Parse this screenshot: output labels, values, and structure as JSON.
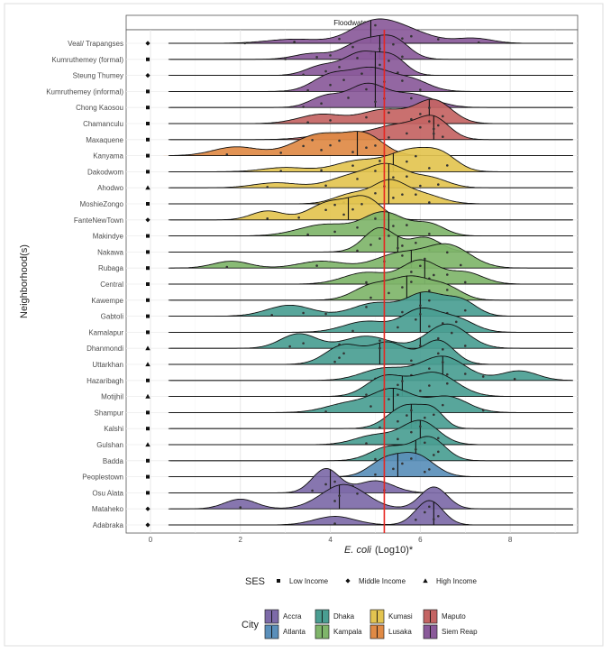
{
  "chart_data": {
    "type": "ridgeline",
    "panel_title": "Floodwater",
    "xlabel_italic": "E. coli",
    "xlabel_rest": "(Log10)*",
    "ylabel": "Neighborhood(s)",
    "xlim": [
      -0.3,
      9.5
    ],
    "xticks": [
      0,
      2,
      4,
      6,
      8
    ],
    "reference_line": 5.2,
    "reference_line_color": "#e8251f",
    "grid": true,
    "legend_position": "bottom",
    "ses_legend": {
      "title": "SES",
      "items": [
        {
          "label": "Low Income",
          "shape": "square"
        },
        {
          "label": "Middle Income",
          "shape": "diamond"
        },
        {
          "label": "High Income",
          "shape": "triangle"
        }
      ]
    },
    "city_legend": {
      "title": "City",
      "items": [
        {
          "label": "Accra",
          "color": "#7d6aa8"
        },
        {
          "label": "Atlanta",
          "color": "#5a8fba"
        },
        {
          "label": "Dhaka",
          "color": "#4a9e92"
        },
        {
          "label": "Kampala",
          "color": "#7fb56a"
        },
        {
          "label": "Kumasi",
          "color": "#e3c450"
        },
        {
          "label": "Lusaka",
          "color": "#e08a45"
        },
        {
          "label": "Maputo",
          "color": "#c46463"
        },
        {
          "label": "Siem Reap",
          "color": "#8a5a9a"
        }
      ]
    },
    "rows": [
      {
        "name": "Veal/ Trapangses",
        "city": "Siem Reap",
        "ses": "diamond",
        "median": 4.9,
        "components": [
          [
            3.2,
            0.6,
            0.25
          ],
          [
            4.9,
            0.5,
            1.0
          ],
          [
            5.6,
            0.6,
            0.8
          ],
          [
            7.2,
            0.4,
            0.3
          ]
        ],
        "points": [
          2.1,
          3.2,
          4.2,
          5.0,
          5.6,
          5.8,
          6.4,
          7.3
        ]
      },
      {
        "name": "Kumruthemey (formal)",
        "city": "Siem Reap",
        "ses": "square",
        "median": 5.1,
        "components": [
          [
            3.6,
            0.4,
            0.3
          ],
          [
            4.7,
            0.4,
            0.9
          ],
          [
            5.4,
            0.35,
            1.0
          ]
        ],
        "points": [
          3.0,
          3.7,
          4.0,
          4.5,
          4.9,
          5.1,
          5.4,
          5.6
        ]
      },
      {
        "name": "Steung Thumey",
        "city": "Siem Reap",
        "ses": "diamond",
        "median": 5.0,
        "components": [
          [
            3.8,
            0.35,
            0.4
          ],
          [
            4.7,
            0.4,
            1.0
          ],
          [
            5.4,
            0.3,
            0.7
          ]
        ],
        "points": [
          3.4,
          3.9,
          4.2,
          4.6,
          4.9,
          5.1,
          5.3,
          5.5
        ]
      },
      {
        "name": "Kumruthemey (informal)",
        "city": "Siem Reap",
        "ses": "square",
        "median": 5.0,
        "components": [
          [
            4.0,
            0.4,
            0.7
          ],
          [
            4.9,
            0.45,
            1.0
          ],
          [
            5.8,
            0.4,
            0.5
          ]
        ],
        "points": [
          3.5,
          4.0,
          4.3,
          4.7,
          5.0,
          5.2,
          5.6,
          6.0
        ]
      },
      {
        "name": "Chong Kaosou",
        "city": "Siem Reap",
        "ses": "square",
        "median": 5.0,
        "components": [
          [
            3.9,
            0.35,
            0.5
          ],
          [
            4.8,
            0.4,
            1.0
          ],
          [
            5.8,
            0.5,
            0.6
          ]
        ],
        "points": [
          3.4,
          3.8,
          4.4,
          4.8,
          5.0,
          5.2,
          5.8,
          6.2
        ]
      },
      {
        "name": "Chamanculu",
        "city": "Maputo",
        "ses": "square",
        "median": 6.2,
        "components": [
          [
            3.8,
            0.5,
            0.4
          ],
          [
            5.2,
            0.5,
            0.6
          ],
          [
            6.3,
            0.4,
            1.0
          ]
        ],
        "points": [
          3.5,
          4.0,
          4.8,
          5.3,
          5.8,
          6.0,
          6.2,
          6.4,
          6.5
        ]
      },
      {
        "name": "Maxaquene",
        "city": "Maputo",
        "ses": "square",
        "median": 6.3,
        "components": [
          [
            4.2,
            0.6,
            0.3
          ],
          [
            5.5,
            0.5,
            0.7
          ],
          [
            6.3,
            0.35,
            1.0
          ]
        ],
        "points": [
          5.3,
          5.7,
          6.0,
          6.2,
          6.3,
          6.3,
          6.4,
          6.5
        ]
      },
      {
        "name": "Kanyama",
        "city": "Lusaka",
        "ses": "square",
        "median": 4.6,
        "components": [
          [
            1.9,
            0.5,
            0.4
          ],
          [
            3.8,
            0.6,
            1.0
          ],
          [
            4.8,
            0.4,
            0.8
          ]
        ],
        "points": [
          1.7,
          2.9,
          3.4,
          3.6,
          3.8,
          4.0,
          4.2,
          4.5,
          4.8,
          5.0
        ]
      },
      {
        "name": "Dakodwom",
        "city": "Kumasi",
        "ses": "square",
        "median": 5.4,
        "components": [
          [
            3.0,
            0.5,
            0.2
          ],
          [
            4.6,
            0.5,
            0.5
          ],
          [
            5.8,
            0.5,
            1.0
          ],
          [
            6.5,
            0.35,
            0.6
          ]
        ],
        "points": [
          2.9,
          3.8,
          4.5,
          5.1,
          5.4,
          5.7,
          5.9,
          6.2,
          6.6
        ]
      },
      {
        "name": "Ahodwo",
        "city": "Kumasi",
        "ses": "triangle",
        "median": 5.3,
        "components": [
          [
            2.8,
            0.5,
            0.25
          ],
          [
            4.5,
            0.5,
            0.6
          ],
          [
            5.3,
            0.4,
            1.0
          ],
          [
            6.2,
            0.4,
            0.5
          ]
        ],
        "points": [
          2.6,
          3.9,
          4.6,
          5.0,
          5.2,
          5.4,
          5.7,
          6.0,
          6.4
        ]
      },
      {
        "name": "MoshieZongo",
        "city": "Kumasi",
        "ses": "square",
        "median": 5.3,
        "components": [
          [
            4.5,
            0.4,
            0.5
          ],
          [
            5.3,
            0.35,
            1.0
          ],
          [
            6.0,
            0.45,
            0.5
          ]
        ],
        "points": [
          4.3,
          4.8,
          5.0,
          5.2,
          5.4,
          5.6,
          5.9,
          6.2
        ]
      },
      {
        "name": "FanteNewTown",
        "city": "Kumasi",
        "ses": "diamond",
        "median": 4.4,
        "components": [
          [
            2.6,
            0.35,
            0.45
          ],
          [
            4.0,
            0.45,
            0.9
          ],
          [
            4.8,
            0.35,
            1.0
          ]
        ],
        "points": [
          2.6,
          3.3,
          3.9,
          4.1,
          4.3,
          4.5,
          4.7,
          5.0
        ]
      },
      {
        "name": "Makindye",
        "city": "Kampala",
        "ses": "square",
        "median": 5.3,
        "components": [
          [
            3.9,
            0.6,
            0.5
          ],
          [
            5.2,
            0.45,
            1.0
          ],
          [
            6.2,
            0.35,
            0.5
          ]
        ],
        "points": [
          3.5,
          4.1,
          4.6,
          5.0,
          5.2,
          5.4,
          5.7,
          6.2
        ]
      },
      {
        "name": "Nakawa",
        "city": "Kampala",
        "ses": "square",
        "median": 5.5,
        "components": [
          [
            5.1,
            0.35,
            1.0
          ],
          [
            6.1,
            0.35,
            0.6
          ]
        ],
        "points": [
          4.6,
          4.9,
          5.1,
          5.3,
          5.5,
          5.6,
          5.9,
          6.2
        ]
      },
      {
        "name": "Rubaga",
        "city": "Kampala",
        "ses": "square",
        "median": 5.8,
        "components": [
          [
            1.8,
            0.4,
            0.3
          ],
          [
            3.8,
            0.5,
            0.3
          ],
          [
            5.5,
            0.5,
            0.6
          ],
          [
            6.6,
            0.5,
            1.0
          ]
        ],
        "points": [
          1.7,
          3.7,
          5.2,
          5.6,
          5.8,
          6.1,
          6.6,
          6.9
        ]
      },
      {
        "name": "Central",
        "city": "Kampala",
        "ses": "square",
        "median": 6.1,
        "components": [
          [
            4.8,
            0.5,
            0.5
          ],
          [
            6.0,
            0.4,
            1.0
          ],
          [
            7.0,
            0.4,
            0.5
          ]
        ],
        "points": [
          4.8,
          5.4,
          5.8,
          6.0,
          6.2,
          6.3,
          6.6,
          7.0
        ]
      },
      {
        "name": "Kawempe",
        "city": "Kampala",
        "ses": "square",
        "median": 5.7,
        "components": [
          [
            4.9,
            0.4,
            0.6
          ],
          [
            5.8,
            0.45,
            1.0
          ],
          [
            6.6,
            0.35,
            0.5
          ]
        ],
        "points": [
          4.9,
          5.3,
          5.6,
          5.8,
          6.0,
          6.2,
          6.6
        ]
      },
      {
        "name": "Gabtoli",
        "city": "Dhaka",
        "ses": "square",
        "median": 6.0,
        "components": [
          [
            3.1,
            0.5,
            0.5
          ],
          [
            5.0,
            0.5,
            0.6
          ],
          [
            6.1,
            0.4,
            1.0
          ],
          [
            6.9,
            0.35,
            0.7
          ]
        ],
        "points": [
          2.7,
          3.4,
          3.9,
          4.8,
          5.6,
          6.0,
          6.2,
          6.6,
          7.0
        ]
      },
      {
        "name": "Kamalapur",
        "city": "Dhaka",
        "ses": "square",
        "median": 6.0,
        "components": [
          [
            4.8,
            0.5,
            0.5
          ],
          [
            6.0,
            0.4,
            1.0
          ],
          [
            6.8,
            0.4,
            0.6
          ]
        ],
        "points": [
          4.5,
          5.5,
          5.9,
          6.0,
          6.2,
          6.5,
          6.8
        ]
      },
      {
        "name": "Dhanmondi",
        "city": "Dhaka",
        "ses": "triangle",
        "median": 6.0,
        "components": [
          [
            3.3,
            0.4,
            0.6
          ],
          [
            4.8,
            0.5,
            0.5
          ],
          [
            6.6,
            0.45,
            1.0
          ]
        ],
        "points": [
          3.1,
          3.4,
          4.2,
          5.1,
          6.0,
          6.4,
          6.7,
          7.0
        ]
      },
      {
        "name": "Uttarkhan",
        "city": "Dhaka",
        "ses": "triangle",
        "median": 5.1,
        "components": [
          [
            4.3,
            0.4,
            0.8
          ],
          [
            5.3,
            0.4,
            0.9
          ],
          [
            6.4,
            0.35,
            1.0
          ]
        ],
        "points": [
          4.1,
          4.2,
          4.3,
          5.1,
          5.8,
          6.4,
          6.5
        ]
      },
      {
        "name": "Hazaribagh",
        "city": "Dhaka",
        "ses": "square",
        "median": 6.5,
        "components": [
          [
            5.2,
            0.5,
            0.5
          ],
          [
            6.5,
            0.5,
            1.0
          ],
          [
            8.2,
            0.4,
            0.4
          ]
        ],
        "points": [
          5.0,
          5.8,
          6.2,
          6.5,
          6.6,
          7.0,
          7.4,
          8.1
        ]
      },
      {
        "name": "Motijhil",
        "city": "Dhaka",
        "ses": "triangle",
        "median": 5.6,
        "components": [
          [
            5.2,
            0.4,
            0.8
          ],
          [
            6.3,
            0.5,
            1.0
          ]
        ],
        "points": [
          4.8,
          5.2,
          5.5,
          5.6,
          6.0,
          6.2,
          6.6
        ]
      },
      {
        "name": "Shampur",
        "city": "Dhaka",
        "ses": "square",
        "median": 5.4,
        "components": [
          [
            4.4,
            0.5,
            0.4
          ],
          [
            5.4,
            0.45,
            1.0
          ],
          [
            6.6,
            0.45,
            0.7
          ]
        ],
        "points": [
          3.9,
          4.9,
          5.3,
          5.5,
          5.8,
          6.5,
          7.4
        ]
      },
      {
        "name": "Kalshi",
        "city": "Dhaka",
        "ses": "square",
        "median": 5.8,
        "components": [
          [
            5.7,
            0.4,
            1.0
          ],
          [
            6.3,
            0.25,
            0.6
          ]
        ],
        "points": [
          5.1,
          5.5,
          5.7,
          5.8,
          5.9,
          6.1,
          6.3
        ]
      },
      {
        "name": "Gulshan",
        "city": "Dhaka",
        "ses": "triangle",
        "median": 6.0,
        "components": [
          [
            5.0,
            0.45,
            0.4
          ],
          [
            6.0,
            0.4,
            1.0
          ]
        ],
        "points": [
          4.8,
          5.5,
          5.8,
          6.0,
          6.1,
          6.4
        ]
      },
      {
        "name": "Badda",
        "city": "Dhaka",
        "ses": "square",
        "median": 5.9,
        "components": [
          [
            5.3,
            0.4,
            0.6
          ],
          [
            6.2,
            0.35,
            1.0
          ]
        ],
        "points": [
          5.0,
          5.4,
          5.9,
          6.1,
          6.3,
          6.4
        ]
      },
      {
        "name": "Peoplestown",
        "city": "Atlanta",
        "ses": "square",
        "median": 5.5,
        "components": [
          [
            5.2,
            0.35,
            0.7
          ],
          [
            5.9,
            0.4,
            1.0
          ]
        ],
        "points": [
          5.0,
          5.4,
          5.6,
          5.8,
          6.1,
          6.2
        ]
      },
      {
        "name": "Osu Alata",
        "city": "Accra",
        "ses": "square",
        "median": 4.0,
        "components": [
          [
            3.9,
            0.3,
            1.0
          ],
          [
            5.0,
            0.4,
            0.5
          ]
        ],
        "points": [
          3.6,
          3.9,
          4.1,
          4.5,
          5.2,
          5.9
        ]
      },
      {
        "name": "Mataheko",
        "city": "Accra",
        "ses": "diamond",
        "median": 4.2,
        "components": [
          [
            2.0,
            0.35,
            0.4
          ],
          [
            4.3,
            0.5,
            1.0
          ],
          [
            6.3,
            0.3,
            0.9
          ]
        ],
        "points": [
          2.0,
          4.1,
          4.2,
          4.6,
          6.3
        ]
      },
      {
        "name": "Adabraka",
        "city": "Accra",
        "ses": "diamond",
        "median": 6.3,
        "components": [
          [
            4.1,
            0.45,
            0.35
          ],
          [
            6.2,
            0.3,
            1.0
          ]
        ],
        "points": [
          4.1,
          5.9,
          6.1,
          6.2,
          6.3,
          6.4
        ]
      }
    ]
  }
}
